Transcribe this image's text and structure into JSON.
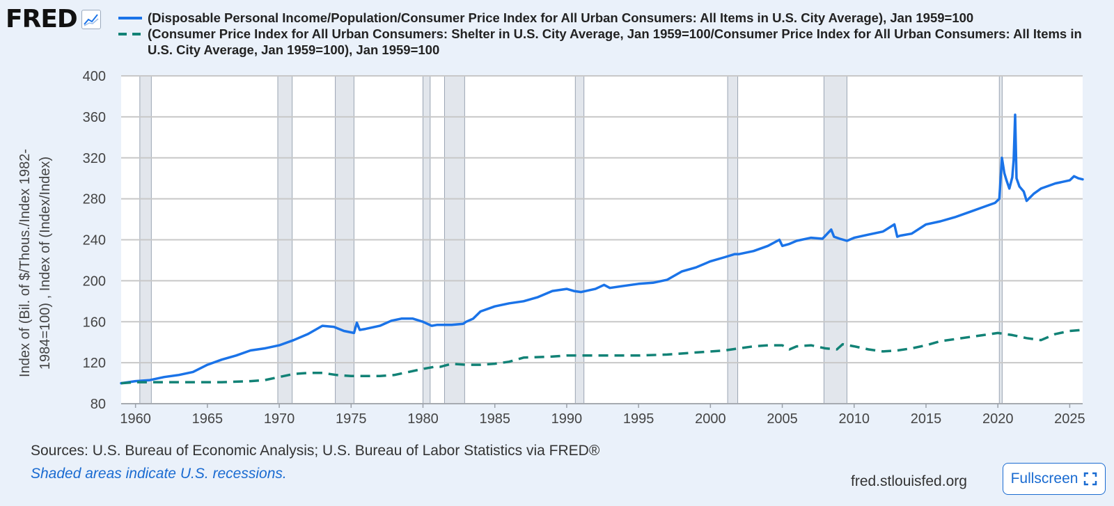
{
  "brand": {
    "logo_text": "FRED"
  },
  "chart_data": {
    "type": "line",
    "ylabel": "Index of (Bil. of $/Thous./Index 1982-1984=100) , Index of (Index/Index)",
    "xlabel": "",
    "ylim": [
      80,
      400
    ],
    "xlim": [
      1959.0,
      2025.9
    ],
    "yticks": [
      80,
      120,
      160,
      200,
      240,
      280,
      320,
      360,
      400
    ],
    "xticks": [
      1960,
      1965,
      1970,
      1975,
      1980,
      1985,
      1990,
      1995,
      2000,
      2005,
      2010,
      2015,
      2020,
      2025
    ],
    "grid": true,
    "recessions": [
      [
        1960.3,
        1961.1
      ],
      [
        1969.9,
        1970.9
      ],
      [
        1973.9,
        1975.2
      ],
      [
        1980.0,
        1980.5
      ],
      [
        1981.5,
        1982.9
      ],
      [
        1990.6,
        1991.2
      ],
      [
        2001.2,
        2001.9
      ],
      [
        2007.9,
        2009.5
      ],
      [
        2020.1,
        2020.3
      ]
    ],
    "series": [
      {
        "name": "(Disposable Personal Income/Population/Consumer Price Index for All Urban Consumers: All Items in U.S. City Average), Jan 1959=100",
        "color": "#1a73e8",
        "style": "solid",
        "x": [
          1959.0,
          1960,
          1961,
          1962,
          1963,
          1964,
          1965,
          1966,
          1967,
          1968,
          1969,
          1970,
          1971,
          1972,
          1973,
          1973.8,
          1974.5,
          1975.2,
          1975.4,
          1975.6,
          1976,
          1977,
          1977.8,
          1978.5,
          1979.3,
          1980,
          1980.6,
          1981,
          1982,
          1982.8,
          1983,
          1983.5,
          1984,
          1985,
          1986,
          1987,
          1988,
          1989,
          1990,
          1990.5,
          1991,
          1992,
          1992.6,
          1993,
          1994,
          1995,
          1996,
          1997,
          1998,
          1999,
          2000,
          2001,
          2001.7,
          2002,
          2003,
          2004,
          2004.8,
          2005,
          2005.5,
          2006,
          2007,
          2007.8,
          2008.4,
          2008.6,
          2009,
          2009.5,
          2010,
          2011,
          2012,
          2012.8,
          2013.0,
          2013.2,
          2014,
          2015,
          2016,
          2017,
          2018,
          2019,
          2019.8,
          2020.1,
          2020.28,
          2020.45,
          2020.6,
          2020.8,
          2021.0,
          2021.1,
          2021.2,
          2021.3,
          2021.5,
          2021.8,
          2022,
          2022.5,
          2023,
          2024,
          2025,
          2025.3,
          2025.6,
          2025.9
        ],
        "values": [
          100,
          102,
          103,
          106,
          108,
          111,
          118,
          123,
          127,
          132,
          134,
          137,
          142,
          148,
          156,
          155,
          151,
          149,
          159,
          152,
          153,
          156,
          161,
          163,
          163,
          160,
          156,
          157,
          157,
          158,
          160,
          163,
          170,
          175,
          178,
          180,
          184,
          190,
          192,
          190,
          189,
          192,
          196,
          193,
          195,
          197,
          198,
          201,
          209,
          213,
          219,
          223,
          226,
          226,
          229,
          234,
          240,
          234,
          236,
          239,
          242,
          241,
          250,
          243,
          241,
          239,
          242,
          245,
          248,
          255,
          243,
          244,
          246,
          255,
          258,
          262,
          267,
          272,
          276,
          280,
          320,
          305,
          298,
          290,
          301,
          318,
          362,
          300,
          292,
          287,
          278,
          285,
          290,
          295,
          298,
          302,
          300,
          299
        ]
      },
      {
        "name": "(Consumer Price Index for All Urban Consumers: Shelter in U.S. City Average, Jan 1959=100/Consumer Price Index for All Urban Consumers: All Items in U.S. City Average, Jan 1959=100), Jan 1959=100",
        "color": "#128276",
        "style": "dashed",
        "x": [
          1959.0,
          1960,
          1962,
          1964,
          1966,
          1968,
          1969,
          1970,
          1971,
          1972,
          1973,
          1974,
          1975,
          1976,
          1977,
          1978,
          1979,
          1980,
          1980.8,
          1981.2,
          1982,
          1983,
          1984,
          1985,
          1986,
          1987,
          1989,
          1990,
          1991,
          1993,
          1995,
          1997,
          1999,
          2001,
          2002,
          2003,
          2004,
          2005,
          2005.5,
          2006,
          2007,
          2008,
          2008.8,
          2009.2,
          2010,
          2011,
          2012,
          2013,
          2014,
          2015,
          2016,
          2017,
          2018,
          2019,
          2020,
          2020.5,
          2021,
          2022,
          2023,
          2024,
          2025,
          2025.9
        ],
        "values": [
          100,
          101,
          101,
          101,
          101,
          102,
          103,
          106,
          109,
          110,
          110,
          108,
          107,
          107,
          107,
          108,
          111,
          114,
          116,
          116,
          119,
          118,
          118,
          119,
          121,
          125,
          126,
          127,
          127,
          127,
          127,
          128,
          130,
          132,
          134,
          136,
          137,
          137,
          133,
          136,
          137,
          134,
          133,
          138,
          136,
          133,
          131,
          132,
          134,
          137,
          141,
          143,
          145,
          147,
          149,
          148,
          147,
          144,
          142,
          148,
          151,
          152
        ]
      }
    ]
  },
  "footer": {
    "sources": "Sources: U.S. Bureau of Economic Analysis; U.S. Bureau of Labor Statistics via FRED®",
    "recessions_note": "Shaded areas indicate U.S. recessions.",
    "site": "fred.stlouisfed.org",
    "fullscreen_label": "Fullscreen"
  }
}
